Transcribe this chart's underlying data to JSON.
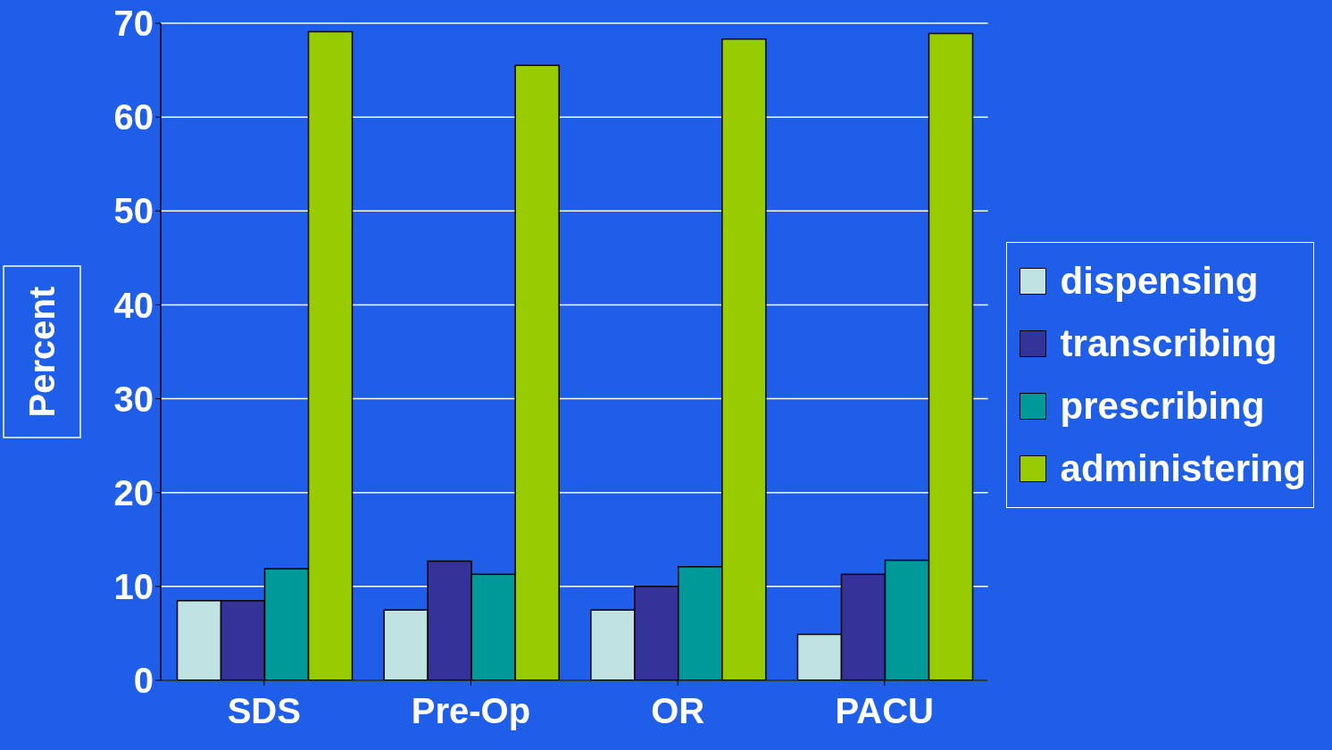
{
  "chart_data": {
    "type": "bar",
    "ylabel": "Percent",
    "categories": [
      "SDS",
      "Pre-Op",
      "OR",
      "PACU"
    ],
    "series": [
      {
        "name": "dispensing",
        "color": "#bfe3e3",
        "values": [
          8.5,
          7.5,
          7.5,
          4.9
        ]
      },
      {
        "name": "transcribing",
        "color": "#333399",
        "values": [
          8.5,
          12.7,
          10.0,
          11.3
        ]
      },
      {
        "name": "prescribing",
        "color": "#009999",
        "values": [
          11.9,
          11.3,
          12.1,
          12.8
        ]
      },
      {
        "name": "administering",
        "color": "#99cc00",
        "values": [
          69.1,
          65.5,
          68.3,
          68.9
        ]
      }
    ],
    "ylim": [
      0,
      70
    ],
    "yticks": [
      0,
      10,
      20,
      30,
      40,
      50,
      60,
      70
    ],
    "grid": "y",
    "legend": "right"
  }
}
